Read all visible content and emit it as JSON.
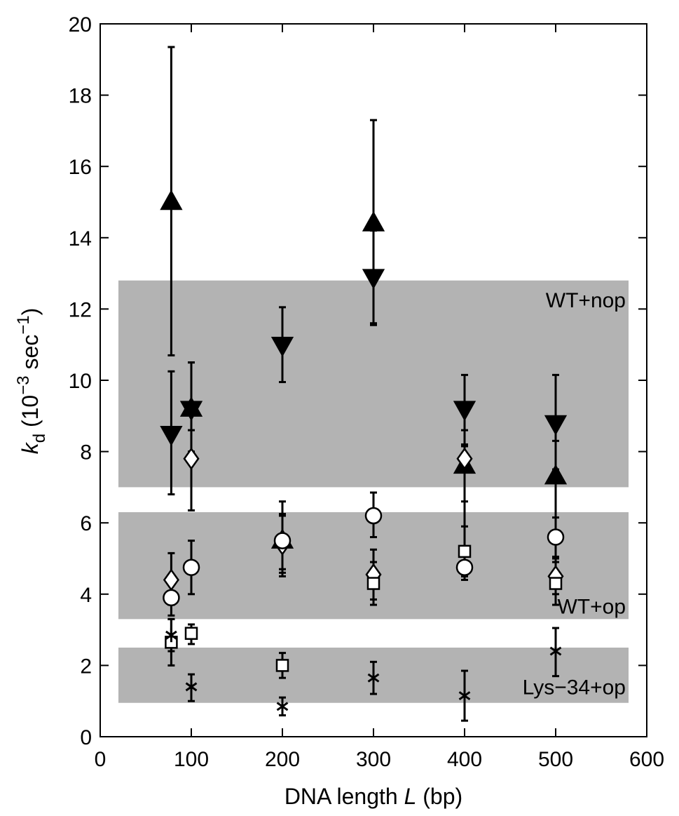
{
  "chart_data": {
    "type": "scatter",
    "xlabel": "DNA length L (bp)",
    "xlabel_parts": {
      "prefix": "DNA length ",
      "italic": "L",
      "suffix": " (bp)"
    },
    "ylabel_parts": {
      "k": "k",
      "sub": "d",
      "open": " (10",
      "exp1": "−3",
      "mid": " sec",
      "exp2": "−1",
      "close": ")"
    },
    "xlim": [
      0,
      600
    ],
    "ylim": [
      0,
      20
    ],
    "xticks": [
      "0",
      "100",
      "200",
      "300",
      "400",
      "500",
      "600"
    ],
    "yticks": [
      "0",
      "2",
      "4",
      "6",
      "8",
      "10",
      "12",
      "14",
      "16",
      "18",
      "20"
    ],
    "bands": [
      {
        "label": "WT+nop",
        "y0": 7.0,
        "y1": 12.8
      },
      {
        "label": "WT+op",
        "y0": 3.3,
        "y1": 6.3
      },
      {
        "label": "Lys−34+op",
        "y0": 0.95,
        "y1": 2.5
      }
    ],
    "band_x_range": [
      20,
      580
    ],
    "band_color": "#b3b3b3",
    "series": [
      {
        "marker": "triangle-up",
        "fill": "#000000",
        "points": [
          {
            "x": 78,
            "y": 15.0,
            "lo": 10.7,
            "hi": 19.35
          },
          {
            "x": 100,
            "y": 9.2,
            "lo": 8.6,
            "hi": 10.5
          },
          {
            "x": 200,
            "y": 5.5,
            "lo": 4.6,
            "hi": 6.6
          },
          {
            "x": 300,
            "y": 14.4,
            "lo": 11.6,
            "hi": 17.3
          },
          {
            "x": 400,
            "y": 7.6,
            "lo": 4.5,
            "hi": 8.2
          },
          {
            "x": 500,
            "y": 7.3,
            "lo": 4.9,
            "hi": 8.3
          }
        ]
      },
      {
        "marker": "triangle-down",
        "fill": "#000000",
        "points": [
          {
            "x": 78,
            "y": 8.5,
            "lo": 6.8,
            "hi": 10.25
          },
          {
            "x": 100,
            "y": 9.2,
            "lo": 8.0,
            "hi": 10.5
          },
          {
            "x": 200,
            "y": 11.0,
            "lo": 9.95,
            "hi": 12.05
          },
          {
            "x": 300,
            "y": 12.9,
            "lo": 11.55,
            "hi": 14.2
          },
          {
            "x": 400,
            "y": 9.2,
            "lo": 8.15,
            "hi": 10.15
          },
          {
            "x": 500,
            "y": 8.8,
            "lo": 7.5,
            "hi": 10.15
          }
        ]
      },
      {
        "marker": "diamond",
        "fill": "#ffffff",
        "points": [
          {
            "x": 78,
            "y": 4.4,
            "lo": 3.7,
            "hi": 5.15
          },
          {
            "x": 100,
            "y": 7.8,
            "lo": 6.35,
            "hi": 9.25
          },
          {
            "x": 200,
            "y": 5.4,
            "lo": 4.5,
            "hi": 6.25
          },
          {
            "x": 300,
            "y": 4.55,
            "lo": 3.85,
            "hi": 5.25
          },
          {
            "x": 400,
            "y": 7.8,
            "lo": 6.6,
            "hi": 8.6
          },
          {
            "x": 500,
            "y": 4.5,
            "lo": 4.0,
            "hi": 5.0
          }
        ]
      },
      {
        "marker": "circle",
        "fill": "#ffffff",
        "points": [
          {
            "x": 78,
            "y": 3.9,
            "lo": 3.4,
            "hi": 4.4
          },
          {
            "x": 100,
            "y": 4.75,
            "lo": 4.0,
            "hi": 5.5
          },
          {
            "x": 200,
            "y": 5.5,
            "lo": 4.7,
            "hi": 6.2
          },
          {
            "x": 300,
            "y": 6.2,
            "lo": 5.6,
            "hi": 6.85
          },
          {
            "x": 400,
            "y": 4.75,
            "lo": 4.4,
            "hi": 5.1
          },
          {
            "x": 500,
            "y": 5.6,
            "lo": 5.05,
            "hi": 6.15
          }
        ]
      },
      {
        "marker": "square",
        "fill": "#ffffff",
        "points": [
          {
            "x": 78,
            "y": 2.65,
            "lo": 2.0,
            "hi": 3.3
          },
          {
            "x": 100,
            "y": 2.9,
            "lo": 2.6,
            "hi": 3.15
          },
          {
            "x": 200,
            "y": 2.0,
            "lo": 1.65,
            "hi": 2.35
          },
          {
            "x": 300,
            "y": 4.3,
            "lo": 3.7,
            "hi": 4.9
          },
          {
            "x": 400,
            "y": 5.2,
            "lo": 4.5,
            "hi": 5.9
          },
          {
            "x": 500,
            "y": 4.3,
            "lo": 3.7,
            "hi": 5.0
          }
        ]
      },
      {
        "marker": "asterisk",
        "fill": "#000000",
        "points": [
          {
            "x": 78,
            "y": 2.85,
            "lo": 2.4,
            "hi": 3.3
          },
          {
            "x": 100,
            "y": 1.4,
            "lo": 1.0,
            "hi": 1.75
          },
          {
            "x": 200,
            "y": 0.85,
            "lo": 0.6,
            "hi": 1.1
          },
          {
            "x": 300,
            "y": 1.65,
            "lo": 1.2,
            "hi": 2.1
          },
          {
            "x": 400,
            "y": 1.15,
            "lo": 0.45,
            "hi": 1.85
          },
          {
            "x": 500,
            "y": 2.4,
            "lo": 1.7,
            "hi": 3.05
          }
        ]
      }
    ]
  }
}
